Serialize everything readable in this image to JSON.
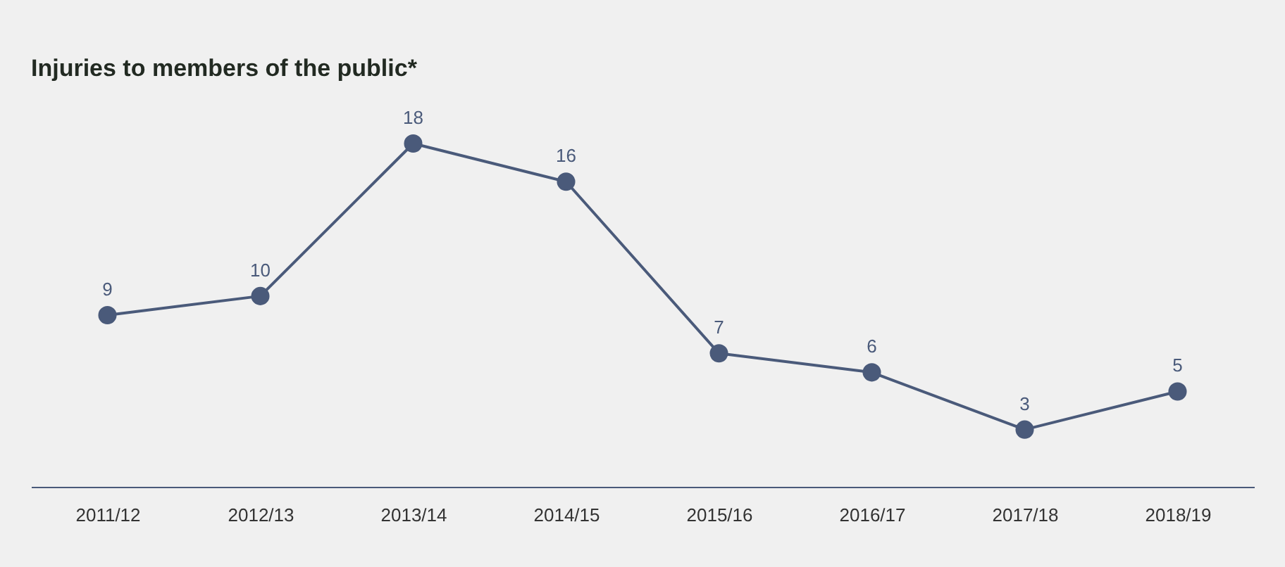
{
  "chart_data": {
    "type": "line",
    "title": "Injuries to members of the public*",
    "categories": [
      "2011/12",
      "2012/13",
      "2013/14",
      "2014/15",
      "2015/16",
      "2016/17",
      "2017/18",
      "2018/19"
    ],
    "series": [
      {
        "color": "#4a5a7a",
        "values": [
          9,
          10,
          18,
          16,
          7,
          6,
          3,
          5
        ]
      }
    ],
    "data_labels": true,
    "marker": "circle",
    "line_style": "solid",
    "grid": false,
    "tick_labels": "x"
  }
}
